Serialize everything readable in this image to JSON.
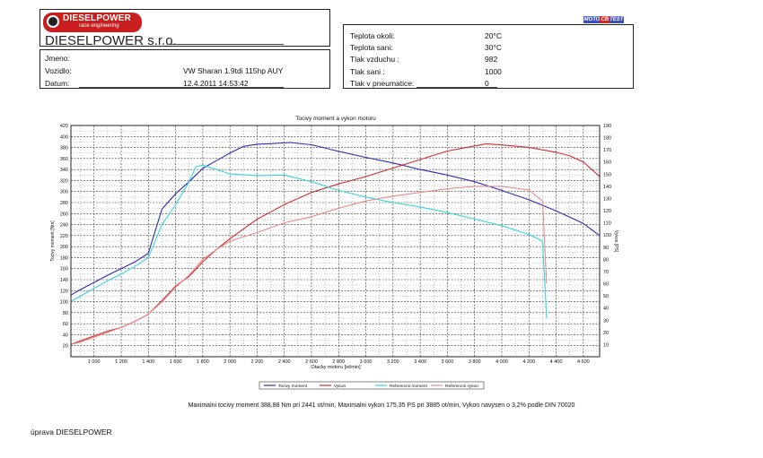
{
  "header": {
    "logo_name": "DIESELPOWER",
    "logo_sub": "race engineering",
    "company": "DIESELPOWER s.r.o.",
    "brand": {
      "left": "MOTO",
      "mid": "CB",
      "right": "TEST"
    }
  },
  "customer": {
    "jmeno_label": "Jmeno:",
    "jmeno_value": "",
    "vozidlo_label": "Vozidlo:",
    "vozidlo_value": "VW Sharan 1.9tdi 115hp AUY",
    "datum_label": "Datum:",
    "datum_value": "12.4.2011 14:53:42"
  },
  "conditions": {
    "teplota_okoli_label": "Teplota okoli:",
    "teplota_okoli_value": "20°C",
    "teplota_sani_label": "Teplota sani:",
    "teplota_sani_value": "30°C",
    "tlak_vzduchu_label": "Tlak vzduchu :",
    "tlak_vzduchu_value": "982",
    "tlak_sani_label": "Tlak sani :",
    "tlak_sani_value": "1000",
    "tlak_pneu_label": "Tlak v pneumatice:",
    "tlak_pneu_value": "0"
  },
  "summary": "Maximalni tocivy moment 388,88 Nm pri 2441 ot/min,  Maximalni vykon 175,35 PS pri 3885 ot/min,  Vykon navysen o 3,2% podle DIN 70020",
  "footer": "úprava DIESELPOWER",
  "chart_data": {
    "type": "line",
    "title": "Tocivy moment a vykon motoru",
    "xlabel": "Otacky motoru [ot/min]",
    "ylabel": "Tocivy moment [Nm]",
    "y2label": "Vykon [PS]",
    "xlim": [
      830,
      4720
    ],
    "ylim": [
      0,
      420
    ],
    "y2lim": [
      0,
      190
    ],
    "xticks": [
      1000,
      1200,
      1400,
      1600,
      1800,
      2000,
      2200,
      2400,
      2600,
      2800,
      3000,
      3200,
      3400,
      3600,
      3800,
      4000,
      4200,
      4400,
      4600
    ],
    "xtick_labels": [
      "1 000",
      "1 200",
      "1 400",
      "1 600",
      "1 800",
      "2 000",
      "2 200",
      "2 400",
      "2 600",
      "2 800",
      "3 000",
      "3 200",
      "3 400",
      "3 600",
      "3 800",
      "4 000",
      "4 200",
      "4 400",
      "4 600"
    ],
    "yticks": [
      20,
      40,
      60,
      80,
      100,
      120,
      140,
      160,
      180,
      200,
      220,
      240,
      260,
      280,
      300,
      320,
      340,
      360,
      380,
      400,
      420
    ],
    "y2ticks": [
      10,
      20,
      30,
      40,
      50,
      60,
      70,
      80,
      90,
      100,
      110,
      120,
      130,
      140,
      150,
      160,
      170,
      180,
      190
    ],
    "grid": true,
    "legend_position": "bottom",
    "colors": {
      "torque": "#2b2bb0",
      "power": "#d62a2a",
      "ref_torque": "#33d6e0",
      "ref_power": "#e88a88"
    },
    "series": [
      {
        "name": "Tocivy moment",
        "key": "torque",
        "axis": "left",
        "x": [
          830,
          900,
          1000,
          1100,
          1200,
          1300,
          1400,
          1500,
          1600,
          1700,
          1800,
          1900,
          2000,
          2100,
          2200,
          2300,
          2441,
          2600,
          2800,
          3000,
          3200,
          3400,
          3600,
          3800,
          4000,
          4200,
          4400,
          4600,
          4720
        ],
        "y": [
          112,
          122,
          135,
          148,
          160,
          172,
          188,
          268,
          296,
          318,
          342,
          356,
          370,
          382,
          386,
          387,
          389,
          385,
          373,
          362,
          352,
          340,
          330,
          318,
          302,
          285,
          265,
          242,
          220
        ]
      },
      {
        "name": "Vykon",
        "key": "power",
        "axis": "right",
        "x": [
          830,
          900,
          1000,
          1100,
          1200,
          1300,
          1400,
          1500,
          1600,
          1700,
          1800,
          1900,
          2000,
          2200,
          2400,
          2600,
          2800,
          3000,
          3200,
          3400,
          3600,
          3885,
          4000,
          4200,
          4400,
          4500,
          4600,
          4720
        ],
        "y": [
          10,
          13,
          17,
          21,
          24,
          29,
          35,
          46,
          58,
          66,
          78,
          88,
          97,
          113,
          125,
          135,
          142,
          148,
          155,
          162,
          169,
          175,
          174,
          172,
          168,
          165,
          160,
          148
        ]
      },
      {
        "name": "Referencni moment",
        "key": "ref_torque",
        "axis": "left",
        "x": [
          830,
          900,
          1000,
          1100,
          1200,
          1300,
          1400,
          1500,
          1600,
          1700,
          1750,
          1800,
          1900,
          2000,
          2200,
          2400,
          2600,
          2800,
          3000,
          3200,
          3400,
          3600,
          3800,
          4000,
          4200,
          4300,
          4320,
          4330
        ],
        "y": [
          100,
          110,
          124,
          138,
          150,
          164,
          180,
          240,
          276,
          318,
          345,
          348,
          340,
          332,
          329,
          330,
          318,
          302,
          290,
          280,
          272,
          262,
          250,
          238,
          222,
          210,
          120,
          70
        ]
      },
      {
        "name": "Referencni vykon",
        "key": "ref_power",
        "axis": "right",
        "x": [
          830,
          900,
          1000,
          1100,
          1200,
          1300,
          1400,
          1500,
          1600,
          1700,
          1800,
          1900,
          2000,
          2200,
          2400,
          2600,
          2800,
          3000,
          3200,
          3400,
          3600,
          3800,
          4000,
          4200,
          4300,
          4330
        ],
        "y": [
          10,
          12,
          16,
          20,
          24,
          29,
          35,
          45,
          57,
          67,
          80,
          88,
          95,
          102,
          110,
          115,
          122,
          128,
          132,
          135,
          138,
          140,
          140,
          137,
          128,
          60
        ]
      }
    ]
  }
}
